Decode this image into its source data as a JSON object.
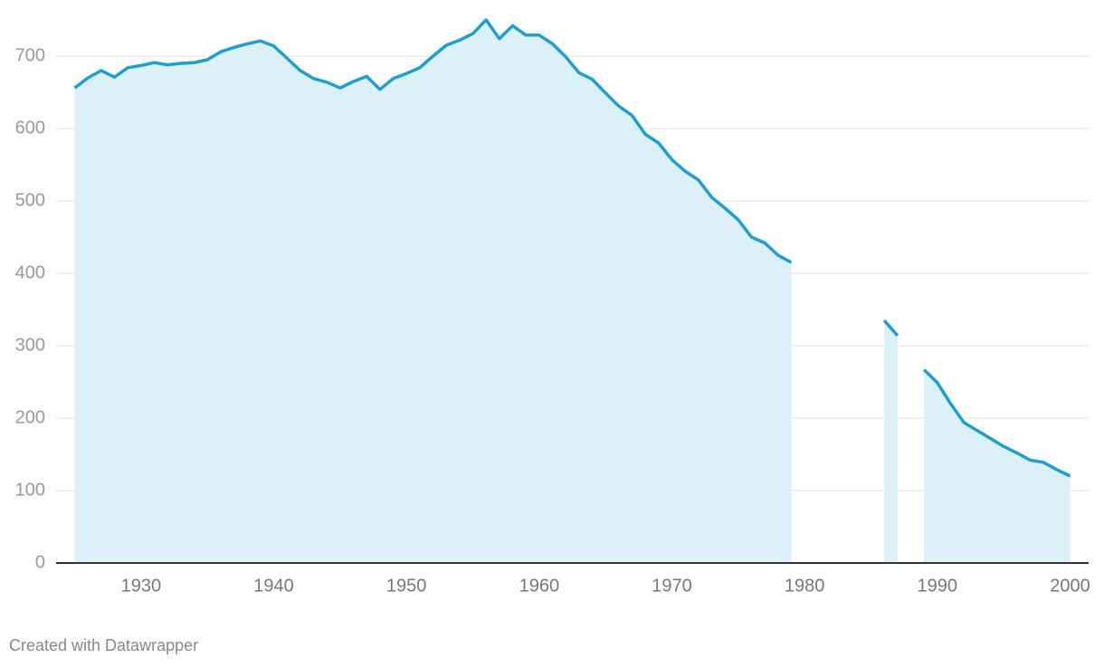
{
  "chart_data": {
    "type": "area",
    "x": [
      1925,
      1926,
      1927,
      1928,
      1929,
      1930,
      1931,
      1932,
      1933,
      1934,
      1935,
      1936,
      1937,
      1938,
      1939,
      1940,
      1941,
      1942,
      1943,
      1944,
      1945,
      1946,
      1947,
      1948,
      1949,
      1950,
      1951,
      1952,
      1953,
      1954,
      1955,
      1956,
      1957,
      1958,
      1959,
      1960,
      1961,
      1962,
      1963,
      1964,
      1965,
      1966,
      1967,
      1968,
      1969,
      1970,
      1971,
      1972,
      1973,
      1974,
      1975,
      1976,
      1977,
      1978,
      1979,
      1980,
      1981,
      1982,
      1983,
      1984,
      1985,
      1986,
      1987,
      1988,
      1989,
      1990,
      1991,
      1992,
      1993,
      1994,
      1995,
      1996,
      1997,
      1998,
      1999,
      2000
    ],
    "values": [
      656,
      670,
      680,
      671,
      684,
      687,
      691,
      688,
      690,
      691,
      695,
      706,
      712,
      717,
      721,
      714,
      697,
      680,
      669,
      664,
      656,
      665,
      672,
      654,
      669,
      676,
      684,
      700,
      715,
      722,
      731,
      750,
      724,
      742,
      729,
      729,
      717,
      699,
      677,
      668,
      649,
      631,
      618,
      592,
      580,
      557,
      541,
      529,
      505,
      490,
      474,
      450,
      442,
      425,
      415,
      null,
      null,
      null,
      null,
      null,
      null,
      335,
      314,
      null,
      267,
      249,
      220,
      194,
      183,
      172,
      161,
      152,
      142,
      139,
      129,
      120
    ],
    "color": "#1f9fd0",
    "fill_color": "#dcf0f7",
    "xlim": [
      1923.6,
      2001.4
    ],
    "ylim": [
      0,
      760
    ],
    "xticks": [
      1930,
      1940,
      1950,
      1960,
      1970,
      1980,
      1990,
      2000
    ],
    "yticks": [
      0,
      100,
      200,
      300,
      400,
      500,
      600,
      700
    ],
    "grid": true,
    "footer": "Created with Datawrapper"
  }
}
